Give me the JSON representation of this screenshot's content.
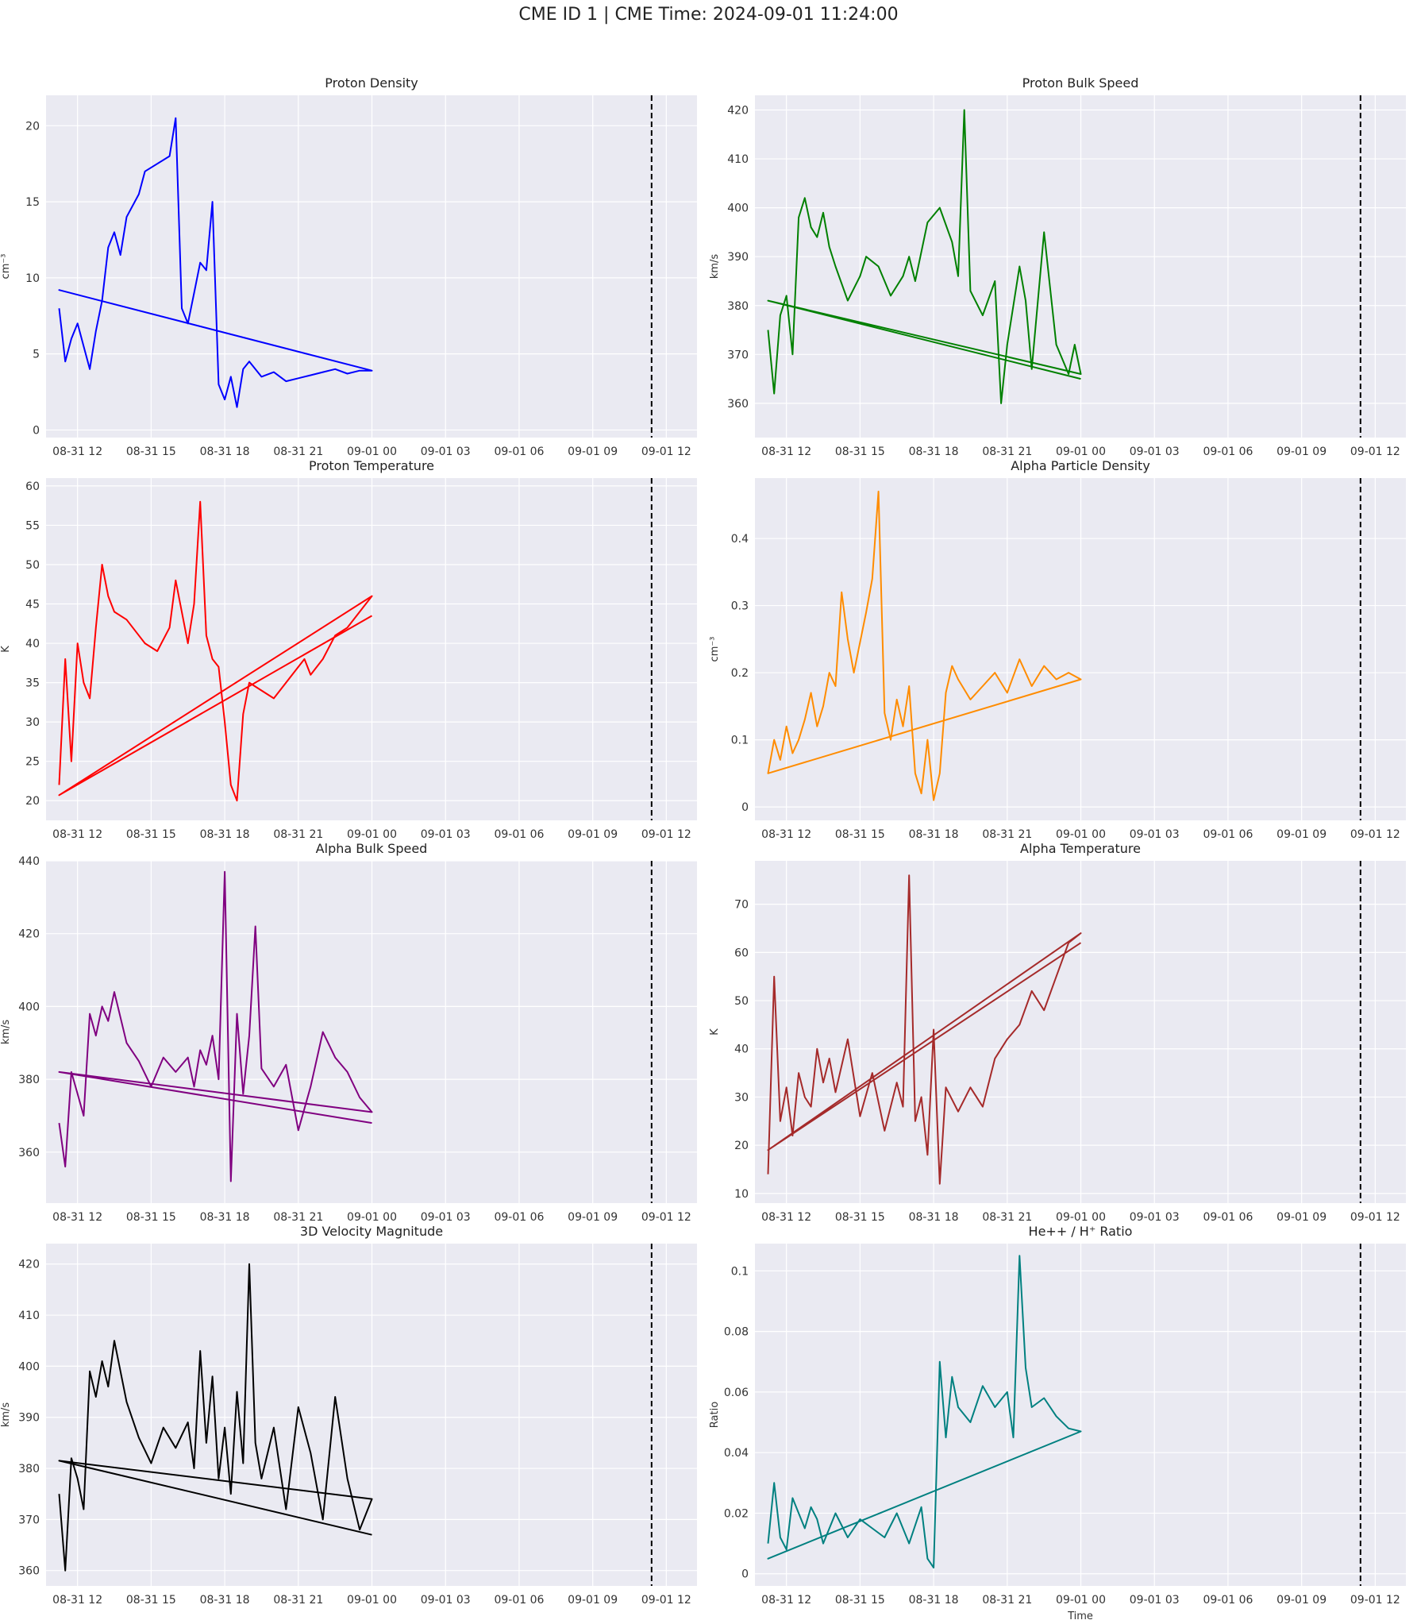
{
  "figure": {
    "title": "CME ID 1 | CME Time: 2024-09-01 11:24:00",
    "background": "#ffffff",
    "plot_background": "#EAEAF2",
    "grid_color": "#ffffff"
  },
  "x_axis": {
    "type": "datetime",
    "range": [
      "2024-08-31 10:43",
      "2024-09-01 13:15"
    ],
    "tick_times": [
      "2024-08-31 12:00",
      "2024-08-31 15:00",
      "2024-08-31 18:00",
      "2024-08-31 21:00",
      "2024-09-01 00:00",
      "2024-09-01 03:00",
      "2024-09-01 06:00",
      "2024-09-01 09:00",
      "2024-09-01 12:00"
    ],
    "tick_labels": [
      "08-31 12",
      "08-31 15",
      "08-31 18",
      "08-31 21",
      "09-01 00",
      "09-01 03",
      "09-01 06",
      "09-01 09",
      "09-01 12"
    ],
    "cme_time": "2024-09-01 11:24",
    "xlabel": "Time"
  },
  "chart_data": [
    {
      "type": "line",
      "title": "Proton Density",
      "ylabel": "cm⁻³",
      "color": "#0000ff",
      "ylim": [
        -0.5,
        22
      ],
      "yticks": [
        0,
        5,
        10,
        15,
        20
      ],
      "grid": true,
      "x": [
        "2024-08-31 11:15",
        "2024-08-31 11:30",
        "2024-08-31 11:45",
        "2024-08-31 12:00",
        "2024-08-31 12:15",
        "2024-08-31 12:30",
        "2024-08-31 12:45",
        "2024-08-31 13:00",
        "2024-08-31 13:15",
        "2024-08-31 13:30",
        "2024-08-31 13:45",
        "2024-08-31 14:00",
        "2024-08-31 14:30",
        "2024-08-31 14:45",
        "2024-08-31 15:45",
        "2024-08-31 16:00",
        "2024-08-31 16:15",
        "2024-08-31 16:30",
        "2024-08-31 16:45",
        "2024-08-31 17:00",
        "2024-08-31 17:15",
        "2024-08-31 17:30",
        "2024-08-31 17:45",
        "2024-08-31 18:00",
        "2024-08-31 18:15",
        "2024-08-31 18:30",
        "2024-08-31 18:45",
        "2024-08-31 19:00",
        "2024-08-31 19:30",
        "2024-08-31 20:00",
        "2024-08-31 20:30",
        "2024-08-31 21:00",
        "2024-08-31 21:30",
        "2024-08-31 22:00",
        "2024-08-31 22:30",
        "2024-08-31 23:00",
        "2024-08-31 23:30",
        "2024-09-01 00:00",
        "2024-08-31 11:15",
        "2024-09-01 00:00"
      ],
      "y": [
        8,
        4.5,
        6,
        7,
        5.5,
        4,
        6.5,
        8.5,
        12,
        13,
        11.5,
        14,
        15.5,
        17,
        18,
        20.5,
        8,
        7,
        9,
        11,
        10.5,
        15,
        3,
        2,
        3.5,
        1.5,
        4,
        4.5,
        3.5,
        3.8,
        3.2,
        3.4,
        3.6,
        3.8,
        4,
        3.7,
        3.9,
        3.9,
        9.2,
        3.9
      ]
    },
    {
      "type": "line",
      "title": "Proton Bulk Speed",
      "ylabel": "km/s",
      "color": "#008000",
      "ylim": [
        353,
        423
      ],
      "yticks": [
        360,
        370,
        380,
        390,
        400,
        410,
        420
      ],
      "grid": true,
      "x": [
        "2024-08-31 11:15",
        "2024-08-31 11:30",
        "2024-08-31 11:45",
        "2024-08-31 12:00",
        "2024-08-31 12:15",
        "2024-08-31 12:30",
        "2024-08-31 12:45",
        "2024-08-31 13:00",
        "2024-08-31 13:15",
        "2024-08-31 13:30",
        "2024-08-31 13:45",
        "2024-08-31 14:00",
        "2024-08-31 14:30",
        "2024-08-31 15:00",
        "2024-08-31 15:15",
        "2024-08-31 15:45",
        "2024-08-31 16:15",
        "2024-08-31 16:45",
        "2024-08-31 17:00",
        "2024-08-31 17:15",
        "2024-08-31 17:45",
        "2024-08-31 18:15",
        "2024-08-31 18:45",
        "2024-08-31 19:00",
        "2024-08-31 19:15",
        "2024-08-31 19:30",
        "2024-08-31 20:00",
        "2024-08-31 20:30",
        "2024-08-31 20:45",
        "2024-08-31 21:00",
        "2024-08-31 21:30",
        "2024-08-31 21:45",
        "2024-08-31 22:00",
        "2024-08-31 22:30",
        "2024-08-31 23:00",
        "2024-08-31 23:30",
        "2024-08-31 23:45",
        "2024-09-01 00:00",
        "2024-08-31 11:15",
        "2024-09-01 00:00"
      ],
      "y": [
        375,
        362,
        378,
        382,
        370,
        398,
        402,
        396,
        394,
        399,
        392,
        388,
        381,
        386,
        390,
        388,
        382,
        386,
        390,
        385,
        397,
        400,
        393,
        386,
        420,
        383,
        378,
        385,
        360,
        372,
        388,
        381,
        367,
        395,
        372,
        366,
        372,
        366,
        381,
        365
      ]
    },
    {
      "type": "line",
      "title": "Proton Temperature",
      "ylabel": "K",
      "color": "#ff0000",
      "ylim": [
        17.5,
        61
      ],
      "yticks": [
        20,
        25,
        30,
        35,
        40,
        45,
        50,
        55,
        60
      ],
      "grid": true,
      "x": [
        "2024-08-31 11:15",
        "2024-08-31 11:30",
        "2024-08-31 11:45",
        "2024-08-31 12:00",
        "2024-08-31 12:15",
        "2024-08-31 12:30",
        "2024-08-31 12:45",
        "2024-08-31 13:00",
        "2024-08-31 13:15",
        "2024-08-31 13:30",
        "2024-08-31 14:00",
        "2024-08-31 14:30",
        "2024-08-31 14:45",
        "2024-08-31 15:15",
        "2024-08-31 15:45",
        "2024-08-31 16:00",
        "2024-08-31 16:30",
        "2024-08-31 16:45",
        "2024-08-31 17:00",
        "2024-08-31 17:15",
        "2024-08-31 17:30",
        "2024-08-31 17:45",
        "2024-08-31 18:00",
        "2024-08-31 18:15",
        "2024-08-31 18:30",
        "2024-08-31 18:45",
        "2024-08-31 19:00",
        "2024-08-31 19:30",
        "2024-08-31 20:00",
        "2024-08-31 20:30",
        "2024-08-31 21:00",
        "2024-08-31 21:15",
        "2024-08-31 21:30",
        "2024-08-31 22:00",
        "2024-08-31 22:30",
        "2024-08-31 23:00",
        "2024-08-31 23:30",
        "2024-09-01 00:00",
        "2024-08-31 11:15",
        "2024-09-01 00:00"
      ],
      "y": [
        22,
        38,
        25,
        40,
        35,
        33,
        42,
        50,
        46,
        44,
        43,
        41,
        40,
        39,
        42,
        48,
        40,
        45,
        58,
        41,
        38,
        37,
        30,
        22,
        20,
        31,
        35,
        34,
        33,
        35,
        37,
        38,
        36,
        38,
        41,
        42,
        44,
        46,
        20.7,
        43.5
      ]
    },
    {
      "type": "line",
      "title": "Alpha Particle Density",
      "ylabel": "cm⁻³",
      "color": "#ff8c00",
      "ylim": [
        -0.02,
        0.49
      ],
      "yticks": [
        0.0,
        0.1,
        0.2,
        0.3,
        0.4
      ],
      "grid": true,
      "x": [
        "2024-08-31 11:15",
        "2024-08-31 11:30",
        "2024-08-31 11:45",
        "2024-08-31 12:00",
        "2024-08-31 12:15",
        "2024-08-31 12:30",
        "2024-08-31 12:45",
        "2024-08-31 13:00",
        "2024-08-31 13:15",
        "2024-08-31 13:30",
        "2024-08-31 13:45",
        "2024-08-31 14:00",
        "2024-08-31 14:15",
        "2024-08-31 14:30",
        "2024-08-31 14:45",
        "2024-08-31 15:15",
        "2024-08-31 15:30",
        "2024-08-31 15:45",
        "2024-08-31 16:00",
        "2024-08-31 16:15",
        "2024-08-31 16:30",
        "2024-08-31 16:45",
        "2024-08-31 17:00",
        "2024-08-31 17:15",
        "2024-08-31 17:30",
        "2024-08-31 17:45",
        "2024-08-31 18:00",
        "2024-08-31 18:15",
        "2024-08-31 18:30",
        "2024-08-31 18:45",
        "2024-08-31 19:00",
        "2024-08-31 19:30",
        "2024-08-31 20:00",
        "2024-08-31 20:30",
        "2024-08-31 21:00",
        "2024-08-31 21:30",
        "2024-08-31 22:00",
        "2024-08-31 22:30",
        "2024-08-31 23:00",
        "2024-08-31 23:30",
        "2024-09-01 00:00",
        "2024-08-31 11:15",
        "2024-09-01 00:00"
      ],
      "y": [
        0.05,
        0.1,
        0.07,
        0.12,
        0.08,
        0.1,
        0.13,
        0.17,
        0.12,
        0.15,
        0.2,
        0.18,
        0.32,
        0.25,
        0.2,
        0.29,
        0.34,
        0.47,
        0.14,
        0.1,
        0.16,
        0.12,
        0.18,
        0.05,
        0.02,
        0.1,
        0.01,
        0.05,
        0.17,
        0.21,
        0.19,
        0.16,
        0.18,
        0.2,
        0.17,
        0.22,
        0.18,
        0.21,
        0.19,
        0.2,
        0.19,
        0.05,
        0.19
      ]
    },
    {
      "type": "line",
      "title": "Alpha Bulk Speed",
      "ylabel": "km/s",
      "color": "#800080",
      "ylim": [
        346,
        440
      ],
      "yticks": [
        360,
        380,
        400,
        420,
        440
      ],
      "grid": true,
      "x": [
        "2024-08-31 11:15",
        "2024-08-31 11:30",
        "2024-08-31 11:45",
        "2024-08-31 12:00",
        "2024-08-31 12:15",
        "2024-08-31 12:30",
        "2024-08-31 12:45",
        "2024-08-31 13:00",
        "2024-08-31 13:15",
        "2024-08-31 13:30",
        "2024-08-31 14:00",
        "2024-08-31 14:30",
        "2024-08-31 15:00",
        "2024-08-31 15:30",
        "2024-08-31 16:00",
        "2024-08-31 16:30",
        "2024-08-31 16:45",
        "2024-08-31 17:00",
        "2024-08-31 17:15",
        "2024-08-31 17:30",
        "2024-08-31 17:45",
        "2024-08-31 18:00",
        "2024-08-31 18:15",
        "2024-08-31 18:30",
        "2024-08-31 18:45",
        "2024-08-31 19:00",
        "2024-08-31 19:15",
        "2024-08-31 19:30",
        "2024-08-31 20:00",
        "2024-08-31 20:30",
        "2024-08-31 21:00",
        "2024-08-31 21:30",
        "2024-08-31 22:00",
        "2024-08-31 22:30",
        "2024-08-31 23:00",
        "2024-08-31 23:30",
        "2024-09-01 00:00",
        "2024-08-31 11:15",
        "2024-09-01 00:00"
      ],
      "y": [
        368,
        356,
        382,
        376,
        370,
        398,
        392,
        400,
        396,
        404,
        390,
        385,
        378,
        386,
        382,
        386,
        378,
        388,
        384,
        392,
        380,
        437,
        352,
        398,
        376,
        392,
        422,
        383,
        378,
        384,
        366,
        378,
        393,
        386,
        382,
        375,
        371,
        382,
        368
      ]
    },
    {
      "type": "line",
      "title": "Alpha Temperature",
      "ylabel": "K",
      "color": "#a52a2a",
      "ylim": [
        8,
        79
      ],
      "yticks": [
        10,
        20,
        30,
        40,
        50,
        60,
        70
      ],
      "grid": true,
      "x": [
        "2024-08-31 11:15",
        "2024-08-31 11:30",
        "2024-08-31 11:45",
        "2024-08-31 12:00",
        "2024-08-31 12:15",
        "2024-08-31 12:30",
        "2024-08-31 12:45",
        "2024-08-31 13:00",
        "2024-08-31 13:15",
        "2024-08-31 13:30",
        "2024-08-31 13:45",
        "2024-08-31 14:00",
        "2024-08-31 14:30",
        "2024-08-31 15:00",
        "2024-08-31 15:30",
        "2024-08-31 16:00",
        "2024-08-31 16:30",
        "2024-08-31 16:45",
        "2024-08-31 17:00",
        "2024-08-31 17:15",
        "2024-08-31 17:30",
        "2024-08-31 17:45",
        "2024-08-31 18:00",
        "2024-08-31 18:15",
        "2024-08-31 18:30",
        "2024-08-31 19:00",
        "2024-08-31 19:30",
        "2024-08-31 20:00",
        "2024-08-31 20:30",
        "2024-08-31 21:00",
        "2024-08-31 21:30",
        "2024-08-31 22:00",
        "2024-08-31 22:30",
        "2024-08-31 23:00",
        "2024-08-31 23:30",
        "2024-09-01 00:00",
        "2024-08-31 11:15",
        "2024-09-01 00:00"
      ],
      "y": [
        14,
        55,
        25,
        32,
        22,
        35,
        30,
        28,
        40,
        33,
        38,
        31,
        42,
        26,
        35,
        23,
        33,
        28,
        76,
        25,
        30,
        18,
        44,
        12,
        32,
        27,
        32,
        28,
        38,
        42,
        45,
        52,
        48,
        55,
        62,
        64,
        19,
        62
      ]
    },
    {
      "type": "line",
      "title": "3D Velocity Magnitude",
      "ylabel": "km/s",
      "color": "#000000",
      "ylim": [
        357,
        424
      ],
      "yticks": [
        360,
        370,
        380,
        390,
        400,
        410,
        420
      ],
      "grid": true,
      "x": [
        "2024-08-31 11:15",
        "2024-08-31 11:30",
        "2024-08-31 11:45",
        "2024-08-31 12:00",
        "2024-08-31 12:15",
        "2024-08-31 12:30",
        "2024-08-31 12:45",
        "2024-08-31 13:00",
        "2024-08-31 13:15",
        "2024-08-31 13:30",
        "2024-08-31 14:00",
        "2024-08-31 14:30",
        "2024-08-31 15:00",
        "2024-08-31 15:30",
        "2024-08-31 16:00",
        "2024-08-31 16:30",
        "2024-08-31 16:45",
        "2024-08-31 17:00",
        "2024-08-31 17:15",
        "2024-08-31 17:30",
        "2024-08-31 17:45",
        "2024-08-31 18:00",
        "2024-08-31 18:15",
        "2024-08-31 18:30",
        "2024-08-31 18:45",
        "2024-08-31 19:00",
        "2024-08-31 19:15",
        "2024-08-31 19:30",
        "2024-08-31 20:00",
        "2024-08-31 20:30",
        "2024-08-31 21:00",
        "2024-08-31 21:30",
        "2024-08-31 22:00",
        "2024-08-31 22:30",
        "2024-08-31 23:00",
        "2024-08-31 23:30",
        "2024-09-01 00:00",
        "2024-08-31 11:15",
        "2024-09-01 00:00"
      ],
      "y": [
        375,
        360,
        382,
        378,
        372,
        399,
        394,
        401,
        396,
        405,
        393,
        386,
        381,
        388,
        384,
        389,
        380,
        403,
        385,
        398,
        378,
        388,
        375,
        395,
        381,
        420,
        385,
        378,
        388,
        372,
        392,
        383,
        370,
        394,
        378,
        368,
        374,
        381.5,
        367
      ]
    },
    {
      "type": "line",
      "title": "He++ / H⁺ Ratio",
      "ylabel": "Ratio",
      "xlabel": "Time",
      "color": "#008080",
      "ylim": [
        -0.004,
        0.109
      ],
      "yticks": [
        0.0,
        0.02,
        0.04,
        0.06,
        0.08,
        0.1
      ],
      "grid": true,
      "x": [
        "2024-08-31 11:15",
        "2024-08-31 11:30",
        "2024-08-31 11:45",
        "2024-08-31 12:00",
        "2024-08-31 12:15",
        "2024-08-31 12:30",
        "2024-08-31 12:45",
        "2024-08-31 13:00",
        "2024-08-31 13:15",
        "2024-08-31 13:30",
        "2024-08-31 14:00",
        "2024-08-31 14:30",
        "2024-08-31 15:00",
        "2024-08-31 15:30",
        "2024-08-31 16:00",
        "2024-08-31 16:30",
        "2024-08-31 17:00",
        "2024-08-31 17:30",
        "2024-08-31 17:45",
        "2024-08-31 18:00",
        "2024-08-31 18:15",
        "2024-08-31 18:30",
        "2024-08-31 18:45",
        "2024-08-31 19:00",
        "2024-08-31 19:30",
        "2024-08-31 20:00",
        "2024-08-31 20:30",
        "2024-08-31 21:00",
        "2024-08-31 21:15",
        "2024-08-31 21:30",
        "2024-08-31 21:45",
        "2024-08-31 22:00",
        "2024-08-31 22:30",
        "2024-08-31 23:00",
        "2024-08-31 23:30",
        "2024-09-01 00:00",
        "2024-08-31 11:15",
        "2024-09-01 00:00"
      ],
      "y": [
        0.01,
        0.03,
        0.012,
        0.008,
        0.025,
        0.02,
        0.015,
        0.022,
        0.018,
        0.01,
        0.02,
        0.012,
        0.018,
        0.015,
        0.012,
        0.02,
        0.01,
        0.022,
        0.005,
        0.002,
        0.07,
        0.045,
        0.065,
        0.055,
        0.05,
        0.062,
        0.055,
        0.06,
        0.045,
        0.105,
        0.068,
        0.055,
        0.058,
        0.052,
        0.048,
        0.047,
        0.005,
        0.047
      ]
    }
  ]
}
